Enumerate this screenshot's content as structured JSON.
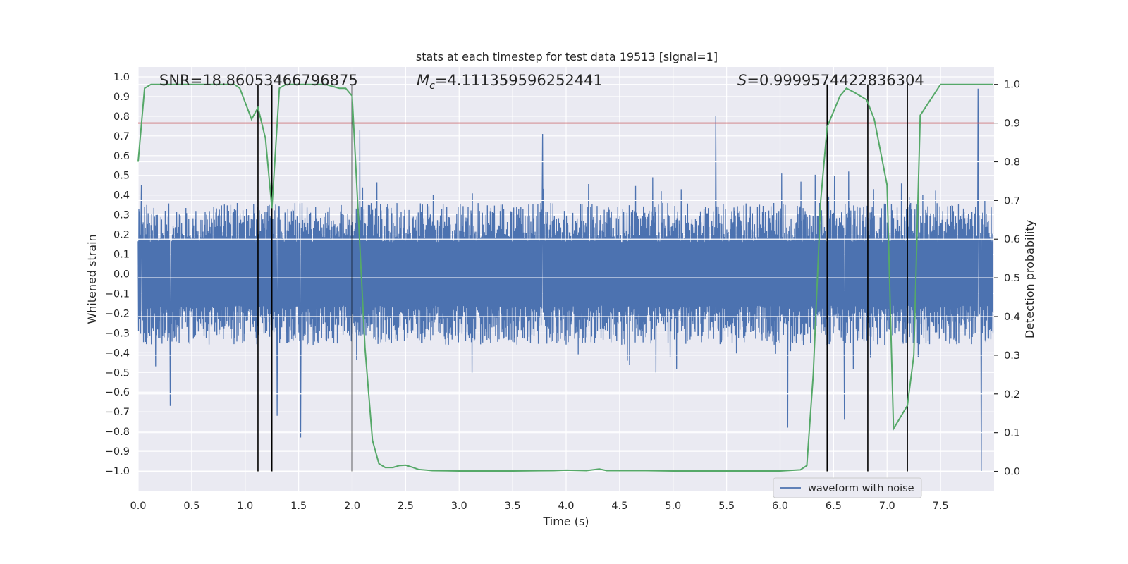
{
  "chart_data": {
    "type": "line",
    "title": "stats at each timestep for test data 19513 [signal=1]",
    "xlabel": "Time (s)",
    "ylabel": "Whitened strain",
    "ylabel_right": "Detection probability",
    "xlim": [
      0.0,
      8.0
    ],
    "ylim": [
      -1.1,
      1.05
    ],
    "ylim_right": [
      -0.05,
      1.045
    ],
    "x_ticks": [
      "0.0",
      "0.5",
      "1.0",
      "1.5",
      "2.0",
      "2.5",
      "3.0",
      "3.5",
      "4.0",
      "4.5",
      "5.0",
      "5.5",
      "6.0",
      "6.5",
      "7.0",
      "7.5"
    ],
    "x_tick_values": [
      0.0,
      0.5,
      1.0,
      1.5,
      2.0,
      2.5,
      3.0,
      3.5,
      4.0,
      4.5,
      5.0,
      5.5,
      6.0,
      6.5,
      7.0,
      7.5
    ],
    "y_ticks": [
      "1.0",
      "0.9",
      "0.8",
      "0.7",
      "0.6",
      "0.5",
      "0.4",
      "0.3",
      "0.2",
      "0.1",
      "0.0",
      "−0.1",
      "−0.2",
      "−0.3",
      "−0.4",
      "−0.5",
      "−0.6",
      "−0.7",
      "−0.8",
      "−0.9",
      "−1.0"
    ],
    "y_tick_values": [
      1.0,
      0.9,
      0.8,
      0.7,
      0.6,
      0.5,
      0.4,
      0.3,
      0.2,
      0.1,
      0.0,
      -0.1,
      -0.2,
      -0.3,
      -0.4,
      -0.5,
      -0.6,
      -0.7,
      -0.8,
      -0.9,
      -1.0
    ],
    "y2_ticks": [
      "1.0",
      "0.9",
      "0.8",
      "0.7",
      "0.6",
      "0.5",
      "0.4",
      "0.3",
      "0.2",
      "0.1",
      "0.0"
    ],
    "y2_tick_values": [
      1.0,
      0.9,
      0.8,
      0.7,
      0.6,
      0.5,
      0.4,
      0.3,
      0.2,
      0.1,
      0.0
    ],
    "annotations": {
      "snr": "SNR=18.86053466796875",
      "mc_symbol": "M",
      "mc_sub": "c",
      "mc_value": "=4.111359596252441",
      "s_symbol": "S",
      "s_value": "=0.9999574422836304"
    },
    "legend": {
      "label": "waveform with noise",
      "placement": "lower-right"
    },
    "threshold": {
      "axis": "right",
      "value": 0.9,
      "color": "#c44e52"
    },
    "event_lines_x": [
      1.12,
      1.25,
      2.0,
      6.44,
      6.82,
      7.19
    ],
    "waveform": {
      "name": "waveform with noise",
      "color": "#4c72b0",
      "x_range": [
        0.0,
        7.99
      ],
      "typical_envelope": [
        -0.36,
        0.36
      ],
      "peaks": [
        [
          0.03,
          0.45
        ],
        [
          0.3,
          -0.67
        ],
        [
          1.3,
          -0.72
        ],
        [
          1.52,
          -0.83
        ],
        [
          2.07,
          0.73
        ],
        [
          3.78,
          0.71
        ],
        [
          5.4,
          0.8
        ],
        [
          6.07,
          -0.78
        ],
        [
          6.6,
          -0.74
        ],
        [
          7.85,
          0.94
        ],
        [
          7.88,
          -1.0
        ]
      ]
    },
    "series": [
      {
        "name": "Detection probability",
        "axis": "right",
        "color": "#55a868",
        "x": [
          0.0,
          0.06,
          0.12,
          0.25,
          0.5,
          0.75,
          0.9,
          0.95,
          1.06,
          1.12,
          1.19,
          1.25,
          1.32,
          1.38,
          1.5,
          1.75,
          1.88,
          1.94,
          2.0,
          2.06,
          2.12,
          2.19,
          2.25,
          2.31,
          2.38,
          2.44,
          2.5,
          2.56,
          2.62,
          2.75,
          3.0,
          3.5,
          3.88,
          4.0,
          4.19,
          4.31,
          4.38,
          4.5,
          4.75,
          5.0,
          5.5,
          6.0,
          6.19,
          6.25,
          6.31,
          6.38,
          6.44,
          6.56,
          6.62,
          6.69,
          6.75,
          6.81,
          6.88,
          7.0,
          7.06,
          7.19,
          7.25,
          7.31,
          7.5,
          7.99
        ],
        "values": [
          0.8,
          0.99,
          1.0,
          1.0,
          1.0,
          1.0,
          1.0,
          0.99,
          0.91,
          0.94,
          0.86,
          0.68,
          0.99,
          1.0,
          1.0,
          1.0,
          0.99,
          0.99,
          0.97,
          0.65,
          0.32,
          0.08,
          0.02,
          0.01,
          0.01,
          0.015,
          0.016,
          0.011,
          0.005,
          0.002,
          0.001,
          0.001,
          0.002,
          0.003,
          0.002,
          0.006,
          0.002,
          0.002,
          0.002,
          0.001,
          0.001,
          0.001,
          0.004,
          0.015,
          0.25,
          0.7,
          0.89,
          0.97,
          0.99,
          0.98,
          0.97,
          0.96,
          0.91,
          0.74,
          0.11,
          0.17,
          0.3,
          0.92,
          1.0,
          1.0
        ]
      }
    ]
  }
}
